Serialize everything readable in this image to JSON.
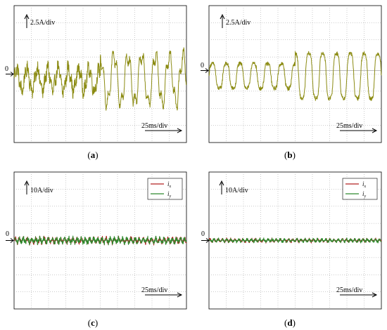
{
  "chart_data": [
    {
      "type": "line",
      "panel_id": "a",
      "caption_letter": "a",
      "zero_label": "0",
      "y_scale_label": "2.5A/div",
      "x_scale_label": "25ms/div",
      "grid": true,
      "divisions": {
        "x": 10,
        "y": 8
      },
      "xlim": [
        0,
        250
      ],
      "ylim": [
        -10,
        10
      ],
      "style": "noisy",
      "series": [
        {
          "color": "#8b8b12",
          "offset": -0.8,
          "segments": [
            {
              "t0": 0,
              "t1": 125,
              "amp": 1.6,
              "period": 15,
              "noise": 0.9
            },
            {
              "t0": 125,
              "t1": 250,
              "amp": 3.5,
              "period": 20,
              "noise": 0.45
            }
          ]
        }
      ]
    },
    {
      "type": "line",
      "panel_id": "b",
      "caption_letter": "b",
      "zero_label": "0",
      "y_scale_label": "2.5A/div",
      "x_scale_label": "25ms/div",
      "grid": true,
      "divisions": {
        "x": 10,
        "y": 8
      },
      "xlim": [
        0,
        250
      ],
      "ylim": [
        -10,
        10
      ],
      "style": "smooth",
      "series": [
        {
          "color": "#8b8b12",
          "offset": -0.8,
          "segments": [
            {
              "t0": 0,
              "t1": 125,
              "amp": 1.8,
              "period": 20,
              "noise": 0.3
            },
            {
              "t0": 125,
              "t1": 250,
              "amp": 3.3,
              "period": 20,
              "noise": 0.3
            }
          ]
        }
      ]
    },
    {
      "type": "line",
      "panel_id": "c",
      "caption_letter": "c",
      "zero_label": "0",
      "y_scale_label": "10A/div",
      "x_scale_label": "25ms/div",
      "grid": true,
      "divisions": {
        "x": 10,
        "y": 8
      },
      "xlim": [
        0,
        250
      ],
      "ylim": [
        -40,
        40
      ],
      "style": "noisy",
      "legend": [
        {
          "symbol": "i",
          "sub": "x",
          "color": "#b22222"
        },
        {
          "symbol": "i",
          "sub": "y",
          "color": "#2e8b2e"
        }
      ],
      "series": [
        {
          "color": "#b22222",
          "offset": 0,
          "segments": [
            {
              "t0": 0,
              "t1": 250,
              "amp": 1.2,
              "period": 6,
              "noise": 1.2
            }
          ]
        },
        {
          "color": "#2e8b2e",
          "offset": 0,
          "segments": [
            {
              "t0": 0,
              "t1": 250,
              "amp": 1.2,
              "period": 6,
              "noise": 1.2
            }
          ]
        }
      ]
    },
    {
      "type": "line",
      "panel_id": "d",
      "caption_letter": "d",
      "zero_label": "0",
      "y_scale_label": "10A/div",
      "x_scale_label": "25ms/div",
      "grid": true,
      "divisions": {
        "x": 10,
        "y": 8
      },
      "xlim": [
        0,
        250
      ],
      "ylim": [
        -40,
        40
      ],
      "style": "noisy",
      "legend": [
        {
          "symbol": "i",
          "sub": "x",
          "color": "#b22222"
        },
        {
          "symbol": "i",
          "sub": "y",
          "color": "#2e8b2e"
        }
      ],
      "series": [
        {
          "color": "#b22222",
          "offset": 0,
          "segments": [
            {
              "t0": 0,
              "t1": 250,
              "amp": 0.7,
              "period": 6,
              "noise": 0.7
            }
          ]
        },
        {
          "color": "#2e8b2e",
          "offset": 0,
          "segments": [
            {
              "t0": 0,
              "t1": 250,
              "amp": 0.7,
              "period": 6,
              "noise": 0.7
            }
          ]
        }
      ]
    }
  ]
}
